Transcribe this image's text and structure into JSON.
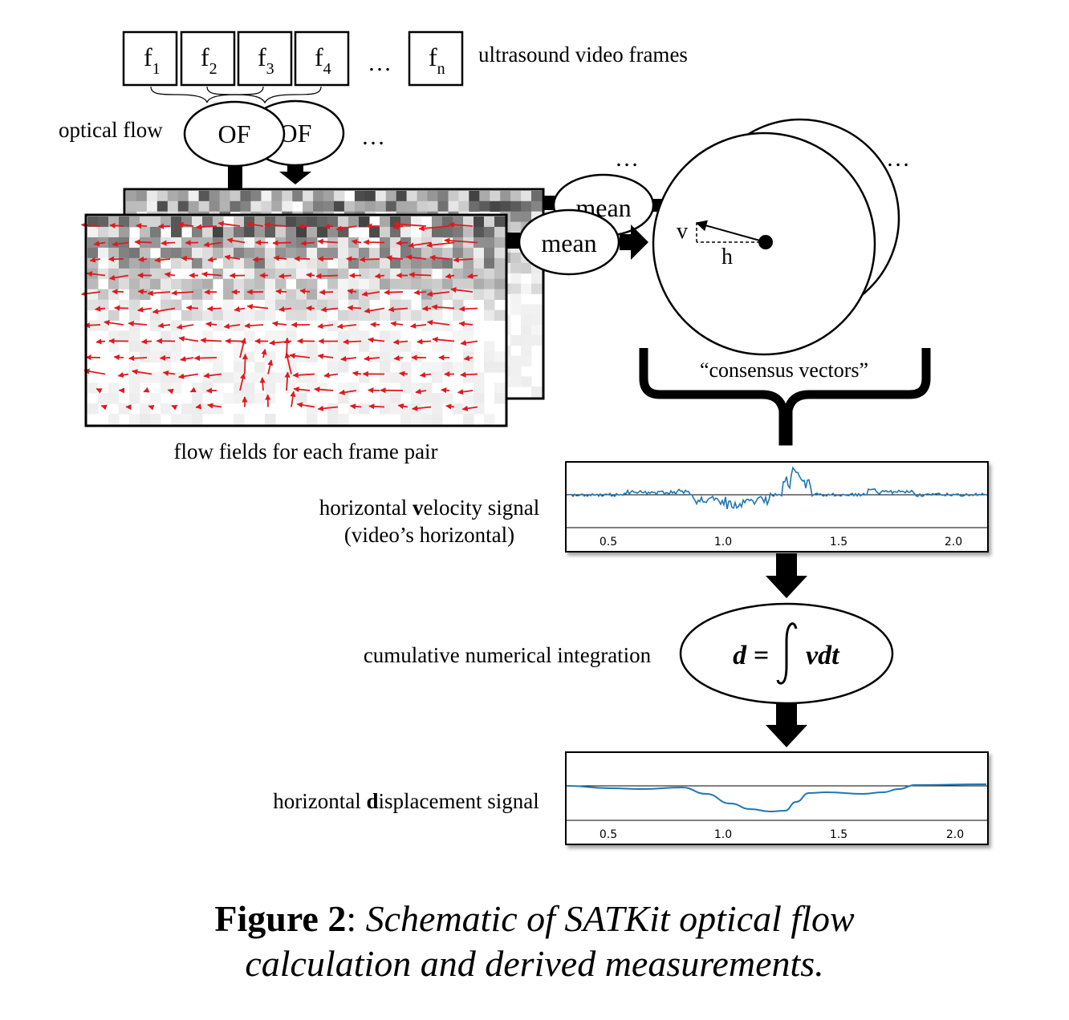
{
  "frames": {
    "labels": [
      {
        "base": "f",
        "sub": "1"
      },
      {
        "base": "f",
        "sub": "2"
      },
      {
        "base": "f",
        "sub": "3"
      },
      {
        "base": "f",
        "sub": "4"
      },
      {
        "base": "f",
        "sub": "n"
      }
    ],
    "ellipsis": "…",
    "caption": "ultrasound video frames"
  },
  "optical_flow": {
    "label": "optical flow",
    "node_front": "OF",
    "node_back": "OF",
    "ellipsis": "…"
  },
  "flow_fields": {
    "caption": "flow fields for each frame pair"
  },
  "mean": {
    "node_front": "mean",
    "node_back": "mean",
    "ellipsis": "…"
  },
  "consensus": {
    "v_label": "v",
    "h_label": "h",
    "ellipsis": "…",
    "caption": "“consensus vectors”"
  },
  "velocity_signal": {
    "label_pre": "horizontal ",
    "label_bold": "v",
    "label_post": "elocity signal",
    "label_line2": "(video’s horizontal)",
    "ticks": [
      "0.5",
      "1.0",
      "1.5",
      "2.0"
    ]
  },
  "integration": {
    "label": "cumulative numerical integration",
    "formula_lhs": "d =",
    "formula_rhs": "vdt"
  },
  "displacement_signal": {
    "label_pre": "horizontal ",
    "label_bold": "d",
    "label_post": "isplacement signal",
    "ticks": [
      "0.5",
      "1.0",
      "1.5",
      "2.0"
    ]
  },
  "caption": {
    "figure_label": "Figure 2",
    "separator": ": ",
    "line1": "Schematic of SATKit optical flow",
    "line2": "calculation and derived measurements."
  },
  "colors": {
    "signal": "#1f77b4",
    "arrows": "#e0191e",
    "ink": "#000000"
  }
}
